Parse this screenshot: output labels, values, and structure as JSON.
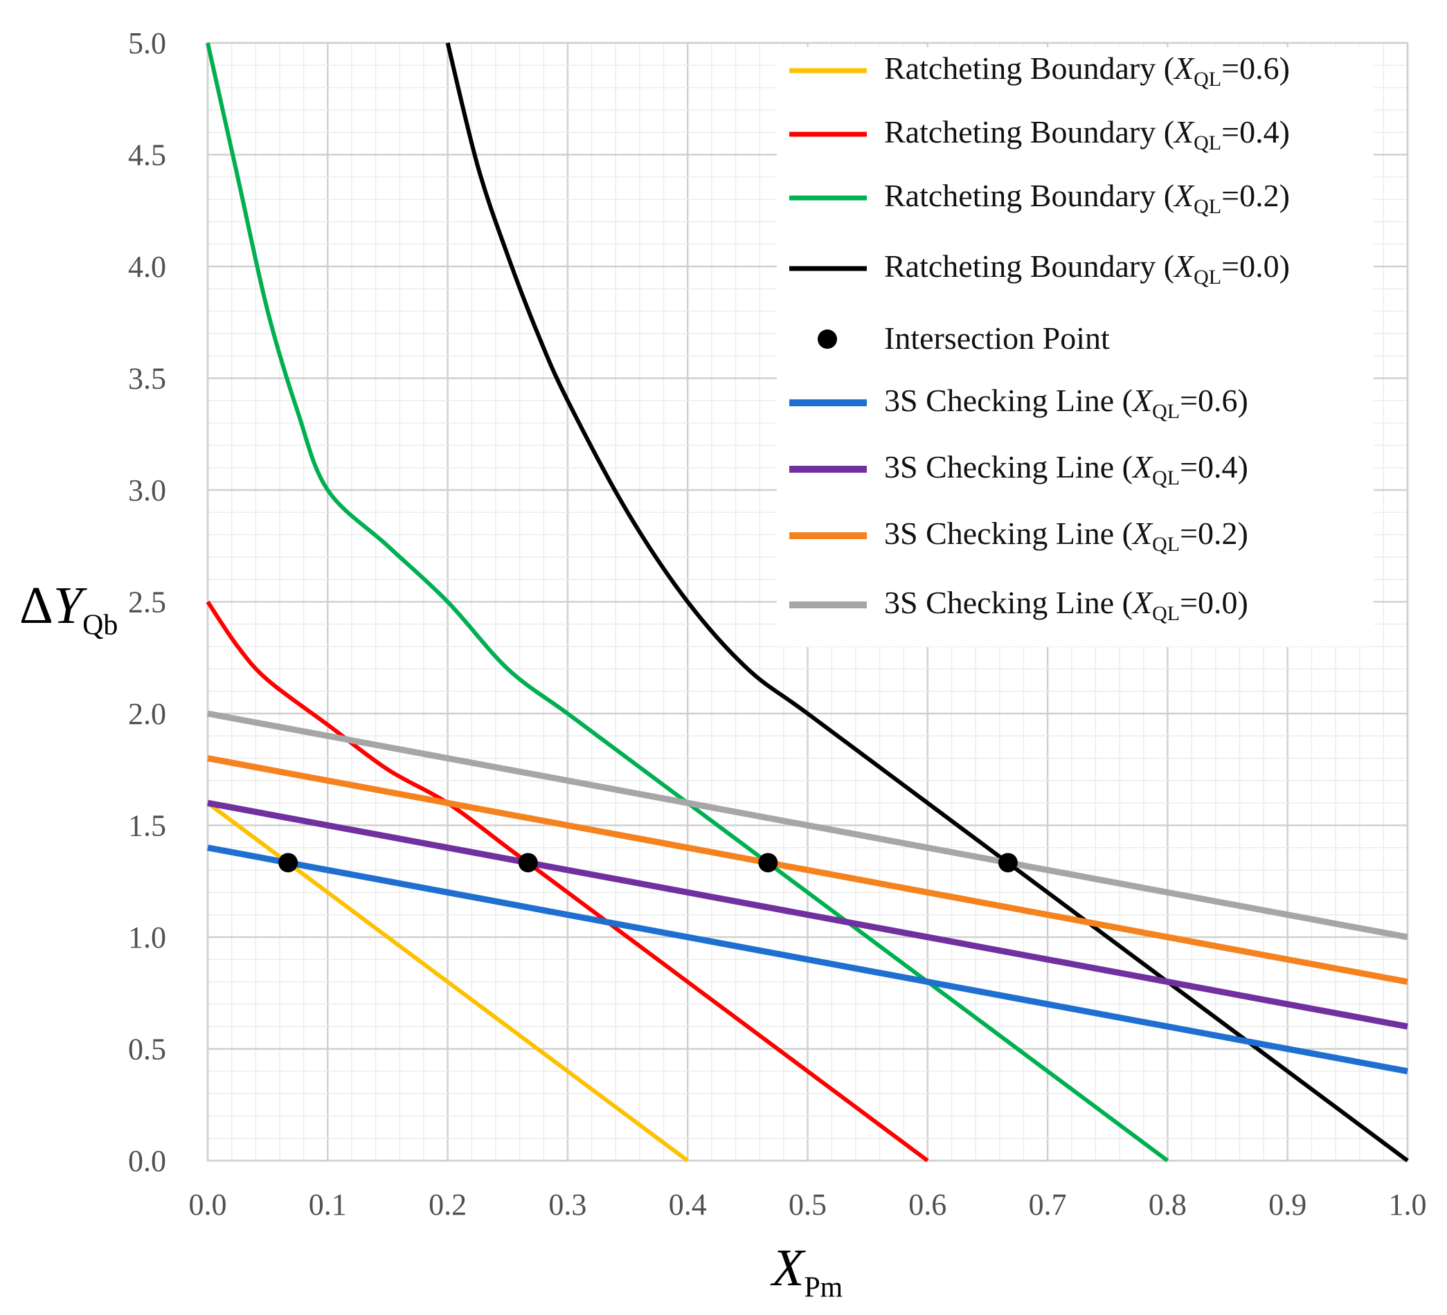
{
  "chart_data": {
    "type": "line",
    "title": "",
    "xlabel": {
      "main": "X",
      "sub": "Pm"
    },
    "ylabel": {
      "main": "ΔY",
      "sub": "Qb"
    },
    "xlim": [
      0,
      1
    ],
    "ylim": [
      0,
      5
    ],
    "x_ticks": [
      "0.0",
      "0.1",
      "0.2",
      "0.3",
      "0.4",
      "0.5",
      "0.6",
      "0.7",
      "0.8",
      "0.9",
      "1.0"
    ],
    "y_ticks": [
      "0.0",
      "0.5",
      "1.0",
      "1.5",
      "2.0",
      "2.5",
      "3.0",
      "3.5",
      "4.0",
      "4.5",
      "5.0"
    ],
    "grid": true,
    "legend_position": "top-right",
    "series": [
      {
        "name": "Ratcheting Boundary (XQL=0.6)",
        "legend": {
          "prefix": "Ratcheting Boundary (",
          "var": "X",
          "sub": "QL",
          "suffix": "=0.6)"
        },
        "color": "#FFC000",
        "width": "thin",
        "points": [
          [
            0,
            1.6
          ],
          [
            0.4,
            0
          ]
        ]
      },
      {
        "name": "Ratcheting Boundary (XQL=0.4)",
        "legend": {
          "prefix": "Ratcheting Boundary (",
          "var": "X",
          "sub": "QL",
          "suffix": "=0.4)"
        },
        "color": "#FF0000",
        "width": "thin",
        "points": [
          [
            0,
            2.5
          ],
          [
            0.025,
            2.3
          ],
          [
            0.05,
            2.15
          ],
          [
            0.1,
            1.95
          ],
          [
            0.15,
            1.75
          ],
          [
            0.2,
            1.6
          ],
          [
            0.25,
            1.4
          ],
          [
            0.3,
            1.2
          ],
          [
            0.4,
            0.8
          ],
          [
            0.5,
            0.4
          ],
          [
            0.6,
            0
          ]
        ]
      },
      {
        "name": "Ratcheting Boundary (XQL=0.2)",
        "legend": {
          "prefix": "Ratcheting Boundary (",
          "var": "X",
          "sub": "QL",
          "suffix": "=0.2)"
        },
        "color": "#00B050",
        "width": "thin",
        "points": [
          [
            0,
            5.0
          ],
          [
            0.025,
            4.4
          ],
          [
            0.05,
            3.8
          ],
          [
            0.075,
            3.35
          ],
          [
            0.1,
            3.0
          ],
          [
            0.15,
            2.75
          ],
          [
            0.2,
            2.5
          ],
          [
            0.25,
            2.2
          ],
          [
            0.3,
            2.0
          ],
          [
            0.35,
            1.8
          ],
          [
            0.4,
            1.6
          ],
          [
            0.5,
            1.2
          ],
          [
            0.6,
            0.8
          ],
          [
            0.7,
            0.4
          ],
          [
            0.8,
            0
          ]
        ]
      },
      {
        "name": "Ratcheting Boundary (XQL=0.0)",
        "legend": {
          "prefix": "Ratcheting Boundary (",
          "var": "X",
          "sub": "QL",
          "suffix": "=0.0)"
        },
        "color": "#000000",
        "width": "thin",
        "points": [
          [
            0.2,
            5.0
          ],
          [
            0.225,
            4.45
          ],
          [
            0.25,
            4.05
          ],
          [
            0.275,
            3.7
          ],
          [
            0.3,
            3.4
          ],
          [
            0.35,
            2.9
          ],
          [
            0.4,
            2.5
          ],
          [
            0.45,
            2.2
          ],
          [
            0.5,
            2.0
          ],
          [
            0.6,
            1.6
          ],
          [
            0.7,
            1.2
          ],
          [
            0.8,
            0.8
          ],
          [
            0.9,
            0.4
          ],
          [
            1.0,
            0
          ]
        ]
      },
      {
        "name": "3S Checking Line (XQL=0.6)",
        "legend": {
          "prefix": "3S Checking Line (",
          "var": "X",
          "sub": "QL",
          "suffix": "=0.6)"
        },
        "color": "#1F6FD1",
        "width": "thick",
        "points": [
          [
            0,
            1.4
          ],
          [
            1.0,
            0.4
          ]
        ]
      },
      {
        "name": "3S Checking Line (XQL=0.4)",
        "legend": {
          "prefix": "3S Checking Line (",
          "var": "X",
          "sub": "QL",
          "suffix": "=0.4)"
        },
        "color": "#7030A0",
        "width": "thick",
        "points": [
          [
            0,
            1.6
          ],
          [
            1.0,
            0.6
          ]
        ]
      },
      {
        "name": "3S Checking Line (XQL=0.2)",
        "legend": {
          "prefix": "3S Checking Line (",
          "var": "X",
          "sub": "QL",
          "suffix": "=0.2)"
        },
        "color": "#F4821F",
        "width": "thick",
        "points": [
          [
            0,
            1.8
          ],
          [
            1.0,
            0.8
          ]
        ]
      },
      {
        "name": "3S Checking Line (XQL=0.0)",
        "legend": {
          "prefix": "3S Checking Line (",
          "var": "X",
          "sub": "QL",
          "suffix": "=0.0)"
        },
        "color": "#A6A6A6",
        "width": "thick",
        "points": [
          [
            0,
            2.0
          ],
          [
            1.0,
            1.0
          ]
        ]
      }
    ],
    "intersection": {
      "name": "Intersection Point",
      "legend": {
        "prefix": "Intersection Point",
        "var": "",
        "sub": "",
        "suffix": ""
      },
      "color": "#000000",
      "points": [
        [
          0.067,
          1.333
        ],
        [
          0.267,
          1.333
        ],
        [
          0.467,
          1.333
        ],
        [
          0.667,
          1.333
        ]
      ]
    },
    "legend_order": [
      0,
      1,
      2,
      3,
      "intersection",
      4,
      5,
      6,
      7
    ]
  }
}
